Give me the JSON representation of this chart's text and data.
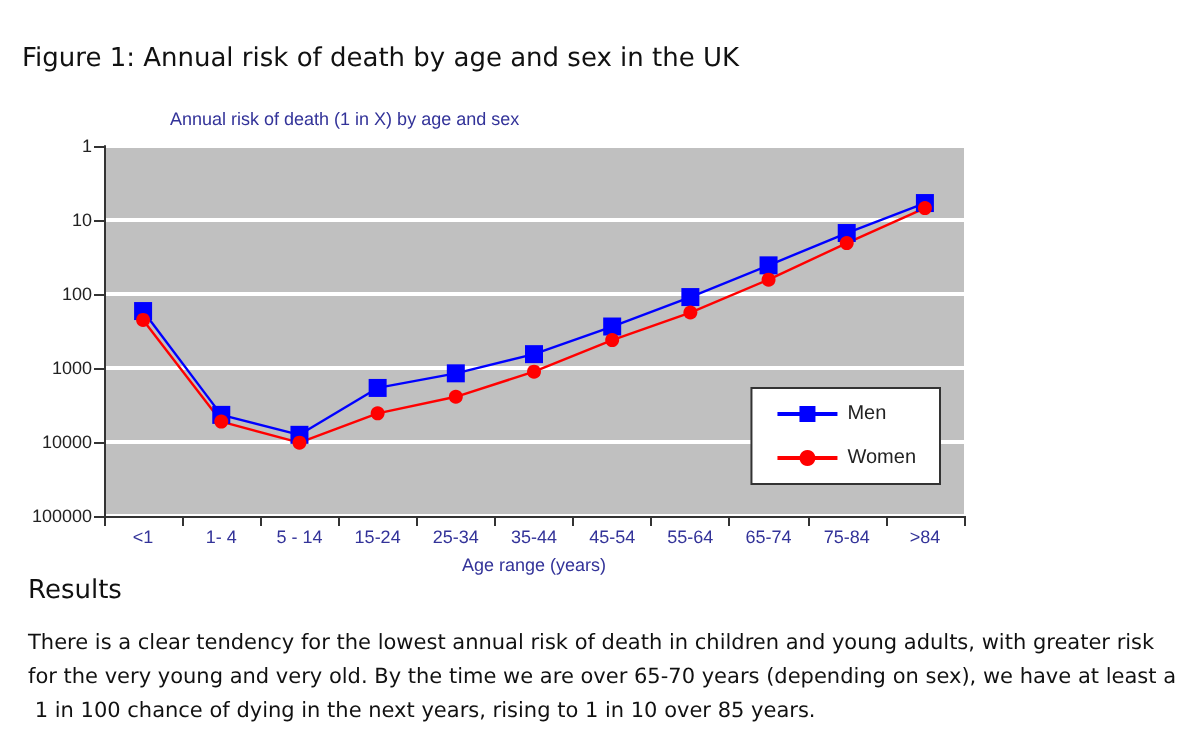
{
  "chart_data": {
    "type": "line",
    "title": "Figure 1: Annual risk of death by age and sex in the UK",
    "subtitle": "Annual risk of death (1 in X) by age and sex",
    "xlabel": "Age range (years)",
    "categories": [
      "<1",
      "1- 4",
      "5 - 14",
      "15-24",
      "25-34",
      "35-44",
      "45-54",
      "55-64",
      "65-74",
      "75-84",
      ">84"
    ],
    "series": [
      {
        "name": "Men",
        "color": "#0000ff",
        "marker": "square",
        "values": [
          170,
          4300,
          8000,
          1860,
          1180,
          650,
          275,
          110,
          41,
          15,
          5.9
        ]
      },
      {
        "name": "Women",
        "color": "#ff0000",
        "marker": "circle",
        "values": [
          224,
          5300,
          10200,
          4100,
          2450,
          1120,
          420,
          178,
          64,
          20.5,
          6.9
        ]
      }
    ],
    "log": "y",
    "ylim": [
      100000,
      1
    ],
    "yticks": [
      1,
      10,
      100,
      1000,
      10000,
      100000
    ],
    "grid": "y",
    "legend": "bottom right",
    "line_style": "solid",
    "annotations": [
      "Results",
      "There is a clear tendency for the lowest annual risk of death in children and young adults, with greater risk for the very young and very old. By the time we are over 65-70 years (depending on sex), we have at least a 1 in 100 chance of dying in the next years, rising to 1 in 10 over 85 years."
    ]
  }
}
